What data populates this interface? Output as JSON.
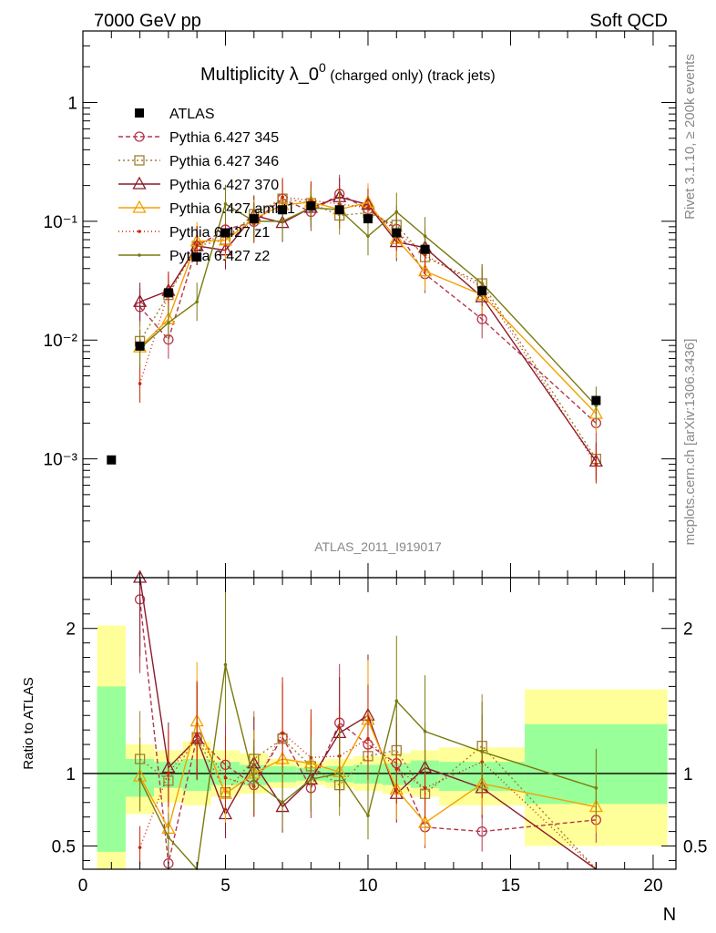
{
  "header": {
    "left": "7000 GeV pp",
    "right": "Soft QCD"
  },
  "side_labels": {
    "rivet": "Rivet 3.1.10, ≥ 200k events",
    "mcplots": "mcplots.cern.ch [arXiv:1306.3436]"
  },
  "chart_data": [
    {
      "type": "scatter",
      "title_main": "Multiplicity λ_0",
      "title_sup": "0",
      "title_suffix": " (charged only) (track jets)",
      "watermark": "ATLAS_2011_I919017",
      "xlabel": "N",
      "ylabel": "",
      "yscale": "log",
      "xlim": [
        0,
        20.8
      ],
      "ylim": [
        0.0001,
        4
      ],
      "y_ticks": [
        {
          "v": 1,
          "label": "1"
        },
        {
          "v": 0.1,
          "label": "10⁻¹"
        },
        {
          "v": 0.01,
          "label": "10⁻²"
        },
        {
          "v": 0.001,
          "label": "10⁻³"
        }
      ],
      "x_ticks": [
        {
          "v": 0,
          "label": "0"
        },
        {
          "v": 5,
          "label": "5"
        },
        {
          "v": 10,
          "label": "10"
        },
        {
          "v": 15,
          "label": "15"
        },
        {
          "v": 20,
          "label": "20"
        }
      ],
      "data_series": {
        "name": "ATLAS",
        "x": [
          1,
          2,
          3,
          4,
          5,
          6,
          7,
          8,
          9,
          10,
          11,
          12,
          14,
          18
        ],
        "y": [
          0.00098,
          0.0089,
          0.025,
          0.05,
          0.08,
          0.105,
          0.125,
          0.135,
          0.125,
          0.105,
          0.08,
          0.058,
          0.026,
          0.0031
        ]
      },
      "series": [
        {
          "name": "Pythia 6.427 345",
          "color": "#b4364e",
          "dash": "5,3",
          "marker": "circle",
          "x": [
            2,
            3,
            4,
            5,
            6,
            7,
            8,
            9,
            10,
            11,
            12,
            14,
            18
          ],
          "y": [
            0.019,
            0.0101,
            0.062,
            0.085,
            0.099,
            0.155,
            0.12,
            0.17,
            0.126,
            0.086,
            0.036,
            0.015,
            0.002
          ]
        },
        {
          "name": "Pythia 6.427 346",
          "color": "#a08030",
          "dash": "2,3",
          "marker": "square",
          "x": [
            2,
            3,
            4,
            5,
            6,
            7,
            8,
            9,
            10,
            11,
            12,
            14,
            18
          ],
          "y": [
            0.0098,
            0.024,
            0.062,
            0.07,
            0.115,
            0.155,
            0.142,
            0.112,
            0.118,
            0.093,
            0.05,
            0.03,
            0.001
          ]
        },
        {
          "name": "Pythia 6.427 370",
          "color": "#8b1a2c",
          "dash": "",
          "marker": "triangle",
          "x": [
            2,
            3,
            4,
            5,
            6,
            7,
            8,
            9,
            10,
            11,
            12,
            14,
            18
          ],
          "y": [
            0.021,
            0.026,
            0.062,
            0.057,
            0.112,
            0.097,
            0.13,
            0.16,
            0.138,
            0.067,
            0.06,
            0.023,
            0.00095
          ]
        },
        {
          "name": "Pythia 6.427 ambt1",
          "color": "#f5a000",
          "dash": "",
          "marker": "triangle",
          "x": [
            2,
            3,
            4,
            5,
            6,
            7,
            8,
            9,
            10,
            11,
            12,
            14,
            18
          ],
          "y": [
            0.0087,
            0.015,
            0.068,
            0.069,
            0.105,
            0.137,
            0.145,
            0.126,
            0.144,
            0.071,
            0.038,
            0.024,
            0.0024
          ]
        },
        {
          "name": "Pythia 6.427 z1",
          "color": "#cc2200",
          "dash": "1,3",
          "marker": "dot",
          "x": [
            2,
            3,
            4,
            5,
            6,
            7,
            8,
            9,
            10,
            11,
            12,
            14,
            18
          ],
          "y": [
            0.0043,
            0.025,
            0.063,
            0.078,
            0.095,
            0.16,
            0.15,
            0.14,
            0.13,
            0.082,
            0.052,
            0.028,
            0.0009
          ]
        },
        {
          "name": "Pythia 6.427 z2",
          "color": "#7a7a10",
          "dash": "",
          "marker": "dot",
          "x": [
            2,
            3,
            4,
            5,
            6,
            7,
            8,
            9,
            10,
            11,
            12,
            14,
            18
          ],
          "y": [
            0.0085,
            0.014,
            0.021,
            0.14,
            0.1,
            0.1,
            0.13,
            0.125,
            0.075,
            0.12,
            0.075,
            0.03,
            0.0028
          ]
        }
      ]
    },
    {
      "type": "line",
      "ylabel": "Ratio to ATLAS",
      "xlabel": "N",
      "xlim": [
        0,
        20.8
      ],
      "ylim": [
        0.34,
        2.35
      ],
      "y_ticks": [
        {
          "v": 0.5,
          "label": "0.5"
        },
        {
          "v": 1,
          "label": "1"
        },
        {
          "v": 2,
          "label": "2"
        }
      ],
      "bands": {
        "x_edges": [
          0.5,
          1.5,
          2.5,
          3.5,
          4.5,
          5.5,
          6.5,
          7.5,
          8.5,
          9.5,
          10.5,
          11.5,
          12.5,
          15.5,
          20.5
        ],
        "yellow": [
          [
            0.34,
            2.02
          ],
          [
            0.72,
            1.2
          ],
          [
            0.8,
            1.16
          ],
          [
            0.78,
            1.22
          ],
          [
            0.84,
            1.16
          ],
          [
            0.86,
            1.14
          ],
          [
            0.9,
            1.1
          ],
          [
            0.92,
            1.08
          ],
          [
            0.9,
            1.1
          ],
          [
            0.88,
            1.12
          ],
          [
            0.86,
            1.14
          ],
          [
            0.84,
            1.16
          ],
          [
            0.78,
            1.18
          ],
          [
            0.5,
            1.58
          ]
        ],
        "green": [
          [
            0.46,
            1.6
          ],
          [
            0.84,
            1.1
          ],
          [
            0.9,
            1.08
          ],
          [
            0.88,
            1.1
          ],
          [
            0.92,
            1.08
          ],
          [
            0.92,
            1.06
          ],
          [
            0.94,
            1.05
          ],
          [
            0.95,
            1.04
          ],
          [
            0.94,
            1.05
          ],
          [
            0.93,
            1.06
          ],
          [
            0.92,
            1.07
          ],
          [
            0.9,
            1.09
          ],
          [
            0.88,
            1.08
          ],
          [
            0.79,
            1.34
          ]
        ]
      },
      "series": [
        {
          "name": "Pythia 6.427 345",
          "y": [
            2.2,
            0.38,
            1.25,
            1.06,
            0.92,
            1.25,
            0.9,
            1.35,
            1.2,
            1.07,
            0.63,
            0.6,
            0.68
          ]
        },
        {
          "name": "Pythia 6.427 346",
          "y": [
            1.1,
            0.95,
            1.25,
            0.87,
            1.1,
            1.24,
            1.05,
            0.92,
            1.12,
            1.16,
            0.86,
            1.19,
            0.3
          ]
        },
        {
          "name": "Pythia 6.427 370",
          "y": [
            2.35,
            1.04,
            1.24,
            0.72,
            1.07,
            0.77,
            0.96,
            1.28,
            1.4,
            0.86,
            1.04,
            0.9,
            0.3
          ]
        },
        {
          "name": "Pythia 6.427 ambt1",
          "y": [
            0.98,
            0.62,
            1.36,
            0.86,
            1.0,
            1.1,
            1.07,
            1.01,
            1.37,
            0.89,
            0.66,
            0.93,
            0.77
          ]
        },
        {
          "name": "Pythia 6.427 z1",
          "y": [
            0.49,
            1.0,
            1.26,
            0.97,
            0.91,
            1.28,
            1.11,
            1.12,
            1.24,
            1.03,
            0.9,
            1.08,
            0.29
          ]
        },
        {
          "name": "Pythia 6.427 z2",
          "y": [
            0.96,
            0.56,
            0.3,
            1.75,
            0.95,
            0.8,
            0.96,
            1.0,
            0.71,
            1.5,
            1.29,
            1.15,
            0.9
          ]
        }
      ]
    }
  ]
}
